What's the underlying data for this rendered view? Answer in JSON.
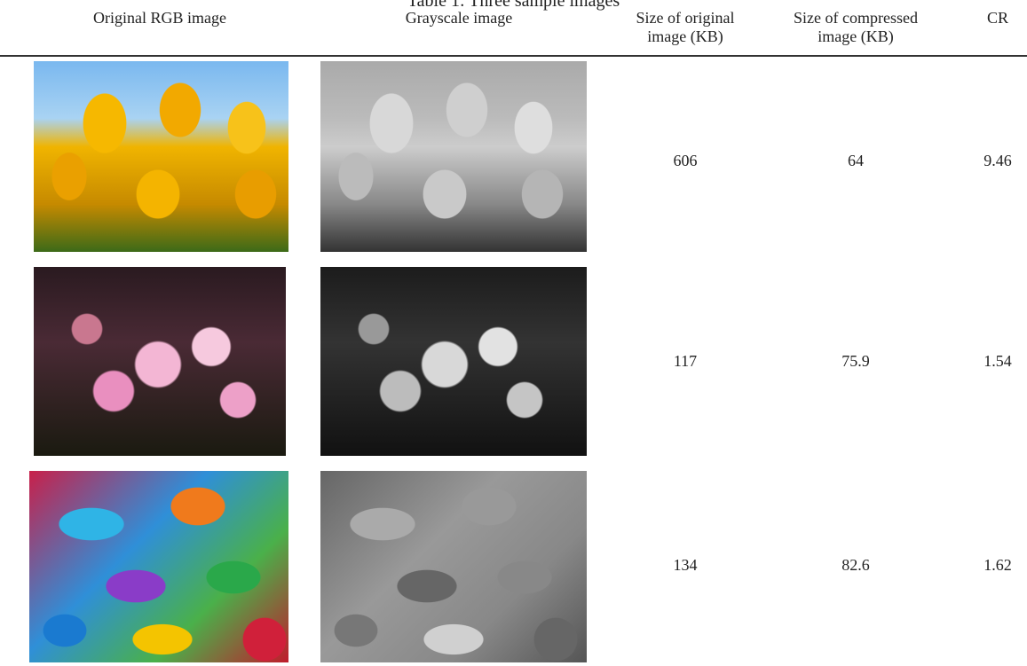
{
  "table": {
    "caption": "Table 1: Three sample images",
    "header": [
      "Original RGB image",
      "Grayscale image",
      "Size of original image (KB)",
      "Size of compressed image (KB)",
      "CR"
    ],
    "rows": [
      [
        606,
        64,
        9.46
      ],
      [
        117,
        75.9,
        1.54
      ],
      [
        134,
        82.6,
        1.62
      ]
    ]
  }
}
